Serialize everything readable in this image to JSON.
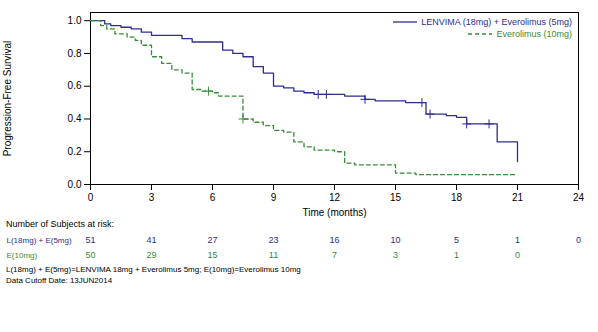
{
  "chart_data": {
    "type": "line",
    "xlabel": "Time (months)",
    "ylabel": "Progression-Free Survival",
    "xlim": [
      0,
      24
    ],
    "ylim": [
      0.0,
      1.05
    ],
    "xticks": [
      0,
      3,
      6,
      9,
      12,
      15,
      18,
      21,
      24
    ],
    "yticks": [
      {
        "value": 0,
        "label": "0.0"
      },
      0.2,
      0.4,
      0.6,
      0.8,
      {
        "value": 1,
        "label": "1.0"
      }
    ],
    "grid": false,
    "legend": "upper right",
    "series": [
      {
        "name": "LENVIMA (18mg) + Everolimus (5mg)",
        "color": "#2E2D8C",
        "line_style": "solid",
        "marker": "plus",
        "x": [
          0,
          0.3,
          0.7,
          1.0,
          1.5,
          2.0,
          2.5,
          3.0,
          3.5,
          4.0,
          4.5,
          5.0,
          5.5,
          6.0,
          6.5,
          7.0,
          7.5,
          8.0,
          8.5,
          9.0,
          9.5,
          10.0,
          10.5,
          11.0,
          11.5,
          12.0,
          12.5,
          13.0,
          13.5,
          14.0,
          14.5,
          15.0,
          15.5,
          16.0,
          16.5,
          17.0,
          17.5,
          18.0,
          18.5,
          19.0,
          20.0,
          20.5,
          21.0
        ],
        "values": [
          1.0,
          1.0,
          0.98,
          0.97,
          0.96,
          0.95,
          0.93,
          0.91,
          0.91,
          0.91,
          0.89,
          0.87,
          0.87,
          0.87,
          0.82,
          0.8,
          0.78,
          0.72,
          0.68,
          0.6,
          0.59,
          0.57,
          0.56,
          0.55,
          0.55,
          0.55,
          0.54,
          0.54,
          0.52,
          0.51,
          0.51,
          0.51,
          0.5,
          0.5,
          0.43,
          0.43,
          0.42,
          0.41,
          0.37,
          0.37,
          0.26,
          0.26,
          0.14
        ],
        "censor_x": [
          11.2,
          11.6,
          13.5,
          16.3,
          16.7,
          18.5,
          19.6
        ],
        "censor_y": [
          0.55,
          0.55,
          0.52,
          0.5,
          0.43,
          0.37,
          0.37
        ]
      },
      {
        "name": "Everolimus (10mg)",
        "color": "#3A8A3A",
        "line_style": "dashed",
        "marker": "plus",
        "x": [
          0,
          0.5,
          0.8,
          1.2,
          1.8,
          2.2,
          2.5,
          3.0,
          3.5,
          4.0,
          4.5,
          5.0,
          5.5,
          6.0,
          6.3,
          6.8,
          7.5,
          8.0,
          8.5,
          9.0,
          9.5,
          10.0,
          10.5,
          11.0,
          11.5,
          12.0,
          12.5,
          13.0,
          13.5,
          14.0,
          15.0,
          16.0,
          17.0,
          18.0,
          19.0,
          20.0,
          21.0
        ],
        "values": [
          1.0,
          0.97,
          0.95,
          0.92,
          0.9,
          0.88,
          0.85,
          0.78,
          0.74,
          0.7,
          0.68,
          0.58,
          0.57,
          0.56,
          0.54,
          0.54,
          0.4,
          0.38,
          0.36,
          0.33,
          0.32,
          0.26,
          0.23,
          0.21,
          0.21,
          0.2,
          0.13,
          0.12,
          0.12,
          0.12,
          0.07,
          0.06,
          0.06,
          0.06,
          0.06,
          0.06,
          0.06
        ],
        "censor_x": [
          5.8,
          7.5
        ],
        "censor_y": [
          0.57,
          0.4
        ]
      }
    ],
    "at_risk": {
      "title": "Number of Subjects at risk:",
      "x": [
        0,
        3,
        6,
        9,
        12,
        15,
        18,
        21,
        24
      ],
      "rows": [
        {
          "label": "L(18mg) + E(5mg)",
          "color": "#2E2D8C",
          "values": [
            51,
            41,
            27,
            23,
            16,
            10,
            5,
            1,
            0
          ]
        },
        {
          "label": "E(10mg)",
          "color": "#3A8A3A",
          "values": [
            50,
            29,
            15,
            11,
            7,
            3,
            1,
            0,
            null
          ]
        }
      ]
    },
    "footnotes": [
      "L(18mg) + E(5mg)=LENVIMA 18mg + Everolimus 5mg; E(10mg)=Everolimus 10mg",
      "Data Cutoff Date: 13JUN2014"
    ]
  }
}
